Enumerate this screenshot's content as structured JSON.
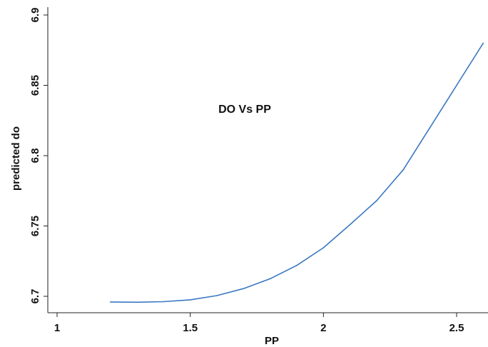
{
  "chart_data": {
    "type": "line",
    "title": "",
    "xlabel": "PP",
    "ylabel": "predicted do",
    "annotation": "DO Vs PP",
    "xlim": [
      1,
      2.6
    ],
    "ylim": [
      6.695,
      6.9
    ],
    "xticks": [
      1,
      1.5,
      2,
      2.5
    ],
    "xtick_labels": [
      "1",
      "1.5",
      "2",
      "2.5"
    ],
    "yticks": [
      6.7,
      6.75,
      6.8,
      6.85,
      6.9
    ],
    "ytick_labels": [
      "6.7",
      "6.75",
      "6.8",
      "6.85",
      "6.9"
    ],
    "grid": false,
    "series": [
      {
        "color": "#3a78c3",
        "x": [
          1.2,
          1.3,
          1.4,
          1.5,
          1.6,
          1.7,
          1.8,
          1.9,
          2.0,
          2.1,
          2.2,
          2.3,
          2.4,
          2.5,
          2.6
        ],
        "y": [
          6.696,
          6.6958,
          6.6962,
          6.6975,
          6.7005,
          6.7055,
          6.7125,
          6.722,
          6.7345,
          6.751,
          6.768,
          6.79,
          6.82,
          6.85,
          6.88
        ]
      }
    ]
  }
}
